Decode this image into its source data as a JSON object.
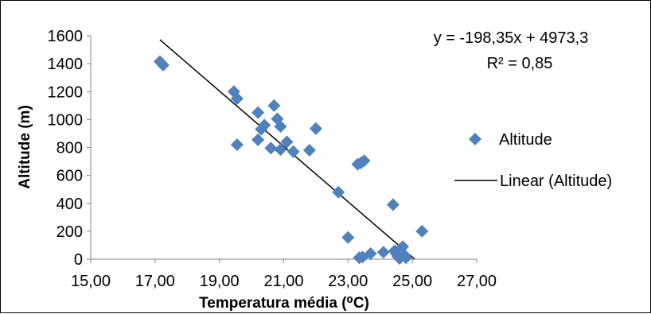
{
  "chart_data": {
    "type": "scatter",
    "xlabel": "Temperatura média (⁰C)",
    "ylabel": "Altitude (m)",
    "xlim": [
      15,
      27
    ],
    "ylim": [
      0,
      1600
    ],
    "x_ticks": [
      "15,00",
      "17,00",
      "19,00",
      "21,00",
      "23,00",
      "25,00",
      "27,00"
    ],
    "y_ticks": [
      "0",
      "200",
      "400",
      "600",
      "800",
      "1000",
      "1200",
      "1400",
      "1600"
    ],
    "grid": false,
    "legend_position": "right",
    "series": [
      {
        "name": "Altitude",
        "marker": "diamond",
        "color": "#4f81bd",
        "points": [
          [
            17.15,
            1415
          ],
          [
            17.25,
            1390
          ],
          [
            19.45,
            1200
          ],
          [
            19.55,
            1150
          ],
          [
            19.55,
            820
          ],
          [
            20.2,
            1050
          ],
          [
            20.3,
            930
          ],
          [
            20.2,
            855
          ],
          [
            20.4,
            960
          ],
          [
            20.6,
            795
          ],
          [
            20.7,
            1100
          ],
          [
            20.8,
            1005
          ],
          [
            20.9,
            950
          ],
          [
            20.9,
            785
          ],
          [
            21.1,
            840
          ],
          [
            21.3,
            770
          ],
          [
            21.8,
            780
          ],
          [
            22.0,
            935
          ],
          [
            22.7,
            480
          ],
          [
            23.0,
            155
          ],
          [
            23.3,
            680
          ],
          [
            23.4,
            690
          ],
          [
            23.5,
            705
          ],
          [
            23.35,
            10
          ],
          [
            23.45,
            15
          ],
          [
            23.7,
            40
          ],
          [
            24.1,
            50
          ],
          [
            24.4,
            390
          ],
          [
            24.45,
            60
          ],
          [
            24.5,
            40
          ],
          [
            24.55,
            20
          ],
          [
            24.6,
            5
          ],
          [
            24.7,
            90
          ],
          [
            24.75,
            30
          ],
          [
            24.8,
            10
          ],
          [
            25.3,
            200
          ]
        ]
      },
      {
        "name": "Linear (Altitude)",
        "type": "trendline",
        "slope": -198.35,
        "intercept": 4973.3,
        "x_range": [
          17.15,
          25.07
        ],
        "color": "#000000"
      }
    ],
    "annotations": {
      "equation": "y = -198,35x + 4973,3",
      "r_squared": "R² = 0,85"
    }
  }
}
